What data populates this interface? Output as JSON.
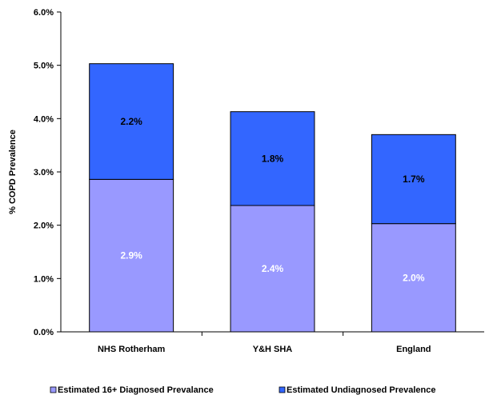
{
  "chart_data": {
    "type": "bar",
    "stacked": true,
    "title": "",
    "xlabel": "",
    "ylabel": "% COPD Prevalence",
    "ylim": [
      0,
      6.0
    ],
    "yticks": [
      "0.0%",
      "1.0%",
      "2.0%",
      "3.0%",
      "4.0%",
      "5.0%",
      "6.0%"
    ],
    "categories": [
      "NHS Rotherham",
      "Y&H SHA",
      "England"
    ],
    "series": [
      {
        "name": "Estimated 16+ Diagnosed Prevalance",
        "values": [
          2.86,
          2.37,
          2.03
        ],
        "labels": [
          "2.9%",
          "2.4%",
          "2.0%"
        ],
        "color": "#9999ff",
        "label_color": "#ffffff"
      },
      {
        "name": "Estimated Undiagnosed Prevalence",
        "values": [
          2.17,
          1.76,
          1.67
        ],
        "labels": [
          "2.2%",
          "1.8%",
          "1.7%"
        ],
        "color": "#3366ff",
        "label_color": "#000000"
      }
    ],
    "grid": false,
    "legend": "bottom"
  }
}
